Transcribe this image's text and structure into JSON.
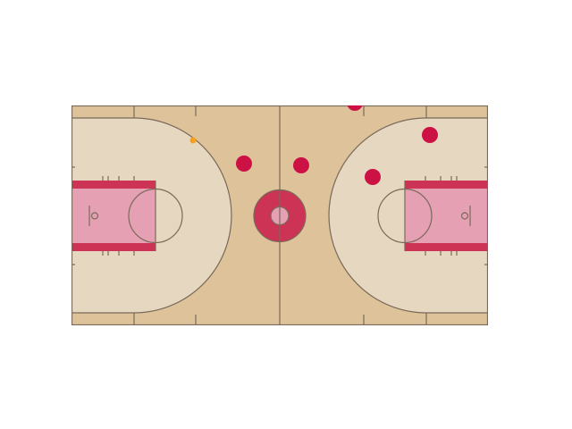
{
  "colors": {
    "background": "#ffffff",
    "court_wood": "#ddc29a",
    "zone_light": "#e6d8c0",
    "paint_fill": "#e6a0b4",
    "paint_stripe": "#cc3355",
    "center_ring": "#cc3355",
    "center_disc": "#e6a0b4",
    "court_line": "#7a6a5a",
    "player_red": "#cc1144",
    "ball": "#f5a020"
  },
  "court": {
    "layout": "full-court",
    "orientation": "horizontal"
  },
  "players": [
    {
      "id": "p1",
      "team": "red"
    },
    {
      "id": "p2",
      "team": "red"
    },
    {
      "id": "p3",
      "team": "red"
    },
    {
      "id": "p4",
      "team": "red"
    },
    {
      "id": "p5",
      "team": "red"
    }
  ],
  "ball": {
    "id": "ball",
    "visible": true
  }
}
